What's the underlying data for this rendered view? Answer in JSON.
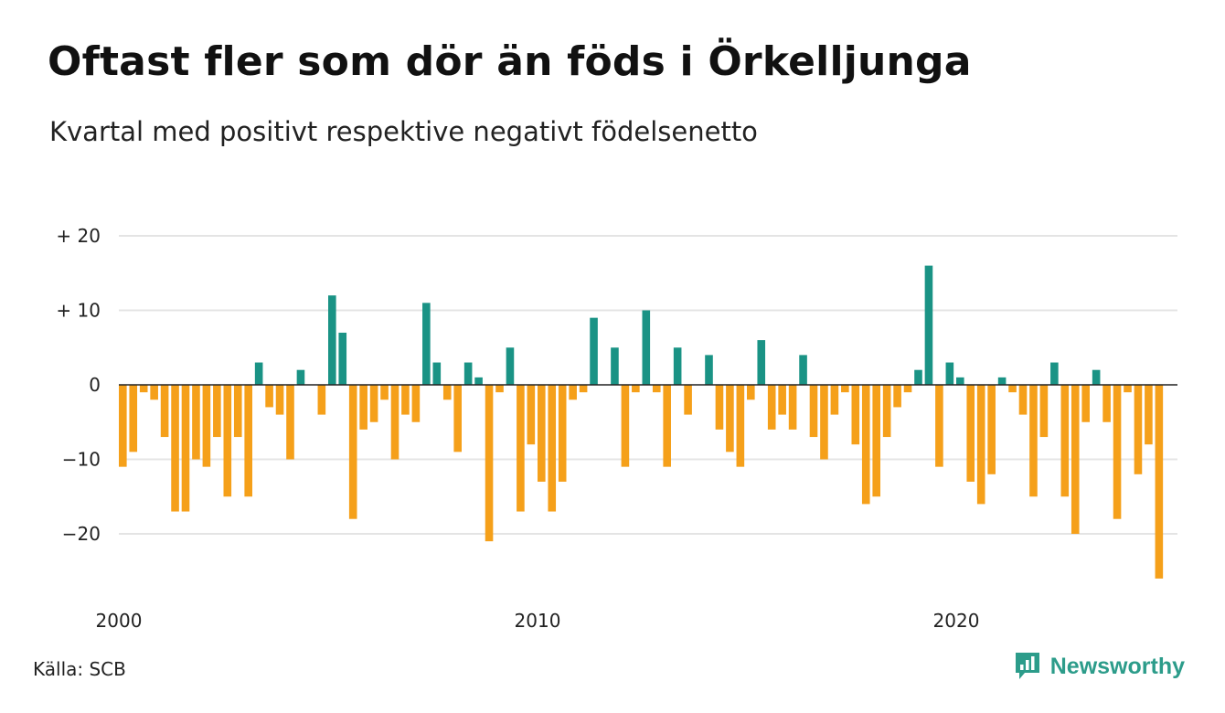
{
  "title": "Oftast fler som dör än föds i Örkelljunga",
  "subtitle": "Kvartal med positivt respektive negativt födelsenetto",
  "source": "Källa: SCB",
  "brand": {
    "name": "Newsworthy",
    "icon": "newsworthy-logo-icon",
    "color": "#2c9c8a"
  },
  "colors": {
    "positive": "#1a9385",
    "negative": "#f5a01a",
    "grid": "#e4e4e4",
    "zero_line": "#222222"
  },
  "chart_data": {
    "type": "bar",
    "title": "Oftast fler som dör än föds i Örkelljunga",
    "subtitle": "Kvartal med positivt respektive negativt födelsenetto",
    "xlabel": "",
    "ylabel": "",
    "ylim": [
      -27,
      20
    ],
    "yticks": [
      {
        "value": 20,
        "label": "+ 20"
      },
      {
        "value": 10,
        "label": "+ 10"
      },
      {
        "value": 0,
        "label": "0"
      },
      {
        "value": -10,
        "label": "−10"
      },
      {
        "value": -20,
        "label": "−20"
      }
    ],
    "x_start": "2000 Q1",
    "xticks": [
      {
        "index": 0,
        "label": "2000"
      },
      {
        "index": 40,
        "label": "2010"
      },
      {
        "index": 80,
        "label": "2020"
      }
    ],
    "grid": true,
    "values": [
      -11,
      -9,
      -1,
      -2,
      -7,
      -17,
      -17,
      -10,
      -11,
      -7,
      -15,
      -7,
      -15,
      3,
      -3,
      -4,
      -10,
      2,
      0,
      -4,
      12,
      7,
      -18,
      -6,
      -5,
      -2,
      -10,
      -4,
      -5,
      11,
      3,
      -2,
      -9,
      3,
      1,
      -21,
      -1,
      5,
      -17,
      -8,
      -13,
      -17,
      -13,
      -2,
      -1,
      9,
      0,
      5,
      -11,
      -1,
      10,
      -1,
      -11,
      5,
      -4,
      0,
      4,
      -6,
      -9,
      -11,
      -2,
      6,
      -6,
      -4,
      -6,
      4,
      -7,
      -10,
      -4,
      -1,
      -8,
      -16,
      -15,
      -7,
      -3,
      -1,
      2,
      16,
      -11,
      3,
      1,
      -13,
      -16,
      -12,
      1,
      -1,
      -4,
      -15,
      -7,
      3,
      -15,
      -20,
      -5,
      2,
      -5,
      -18,
      -1,
      -12,
      -8,
      -26
    ]
  }
}
